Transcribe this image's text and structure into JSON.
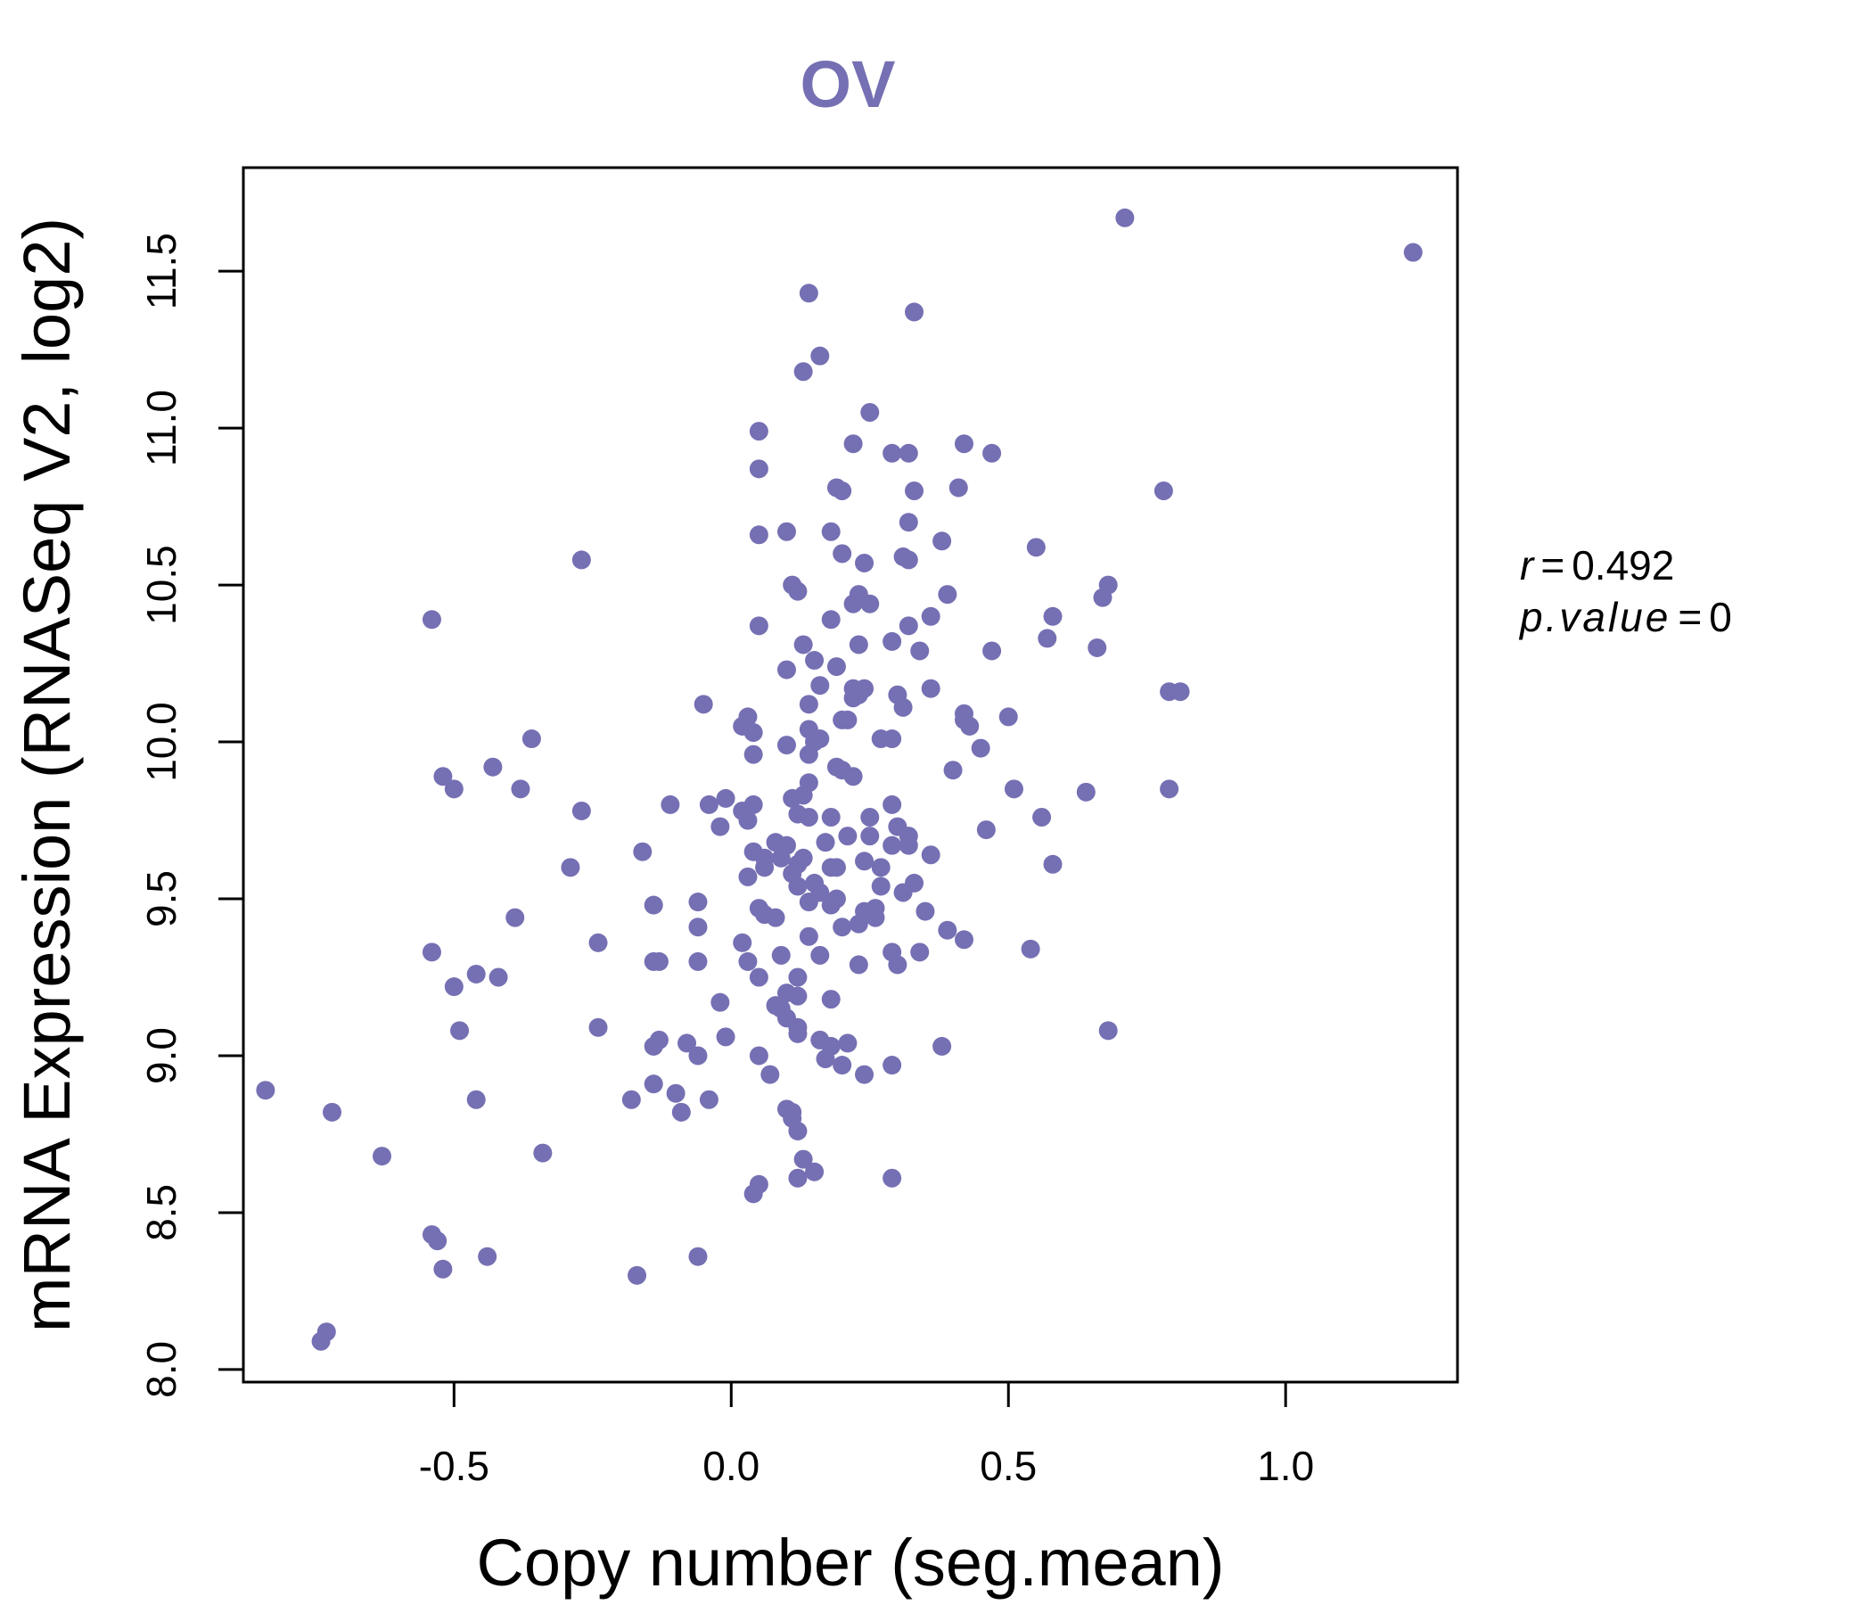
{
  "chart_data": {
    "type": "scatter",
    "title": "OV",
    "xlabel": "Copy number (seg.mean)",
    "ylabel": "mRNA Expression (RNASeq V2, log2)",
    "xlim": [
      -0.88,
      1.31
    ],
    "ylim": [
      7.96,
      11.83
    ],
    "xticks": [
      "-0.5",
      "0.0",
      "0.5",
      "1.0"
    ],
    "yticks": [
      "8.0",
      "8.5",
      "9.0",
      "9.5",
      "10.0",
      "10.5",
      "11.0",
      "11.5"
    ],
    "grid": false,
    "legend": "none",
    "point_color": "#7570b3",
    "annotation": {
      "r_label": "r",
      "r_value": "0.492",
      "p_label": "p.value",
      "p_value": "0"
    },
    "x": [
      1.23,
      0.71,
      0.14,
      0.33,
      0.16,
      0.13,
      0.25,
      0.05,
      0.22,
      0.29,
      0.32,
      0.42,
      0.47,
      0.05,
      0.19,
      0.2,
      0.33,
      0.41,
      0.78,
      0.1,
      0.18,
      0.05,
      0.32,
      0.38,
      0.55,
      0.2,
      0.24,
      0.31,
      0.32,
      -0.27,
      0.11,
      0.68,
      0.67,
      0.12,
      0.23,
      0.22,
      0.25,
      0.39,
      0.36,
      0.05,
      0.32,
      0.18,
      0.58,
      0.13,
      0.57,
      0.23,
      0.29,
      0.34,
      0.47,
      0.66,
      -0.54,
      0.15,
      0.19,
      0.1,
      0.16,
      0.22,
      0.24,
      0.81,
      0.79,
      0.23,
      0.22,
      0.36,
      0.3,
      -0.05,
      0.14,
      0.31,
      0.2,
      0.21,
      0.42,
      0.42,
      0.5,
      0.03,
      0.02,
      0.04,
      0.14,
      0.43,
      0.15,
      0.16,
      0.27,
      0.29,
      0.45,
      -0.36,
      0.1,
      0.4,
      0.14,
      0.04,
      -0.43,
      0.19,
      -0.52,
      0.22,
      0.2,
      -0.5,
      -0.38,
      0.14,
      0.64,
      0.51,
      0.79,
      0.13,
      -0.01,
      -0.11,
      0.11,
      0.04,
      0.29,
      -0.04,
      0.02,
      -0.27,
      0.18,
      0.25,
      0.56,
      0.12,
      0.14,
      0.3,
      0.03,
      0.46,
      0.25,
      0.21,
      -0.02,
      0.32,
      0.17,
      0.32,
      0.08,
      0.1,
      0.04,
      0.29,
      0.36,
      0.13,
      -0.16,
      0.06,
      0.58,
      0.09,
      0.12,
      -0.29,
      0.18,
      0.24,
      0.27,
      0.19,
      0.11,
      0.06,
      0.03,
      0.33,
      0.15,
      0.12,
      0.27,
      0.16,
      0.14,
      0.19,
      0.31,
      -0.06,
      0.18,
      -0.14,
      0.05,
      0.24,
      0.26,
      0.06,
      0.26,
      0.08,
      0.35,
      0.23,
      0.2,
      -0.39,
      -0.06,
      0.39,
      0.42,
      0.14,
      0.02,
      -0.24,
      0.54,
      -0.54,
      0.29,
      0.34,
      0.16,
      0.09,
      -0.14,
      0.03,
      -0.13,
      -0.06,
      0.23,
      0.3,
      -0.46,
      0.05,
      -0.42,
      0.12,
      -0.5,
      0.1,
      0.12,
      0.18,
      -0.02,
      0.08,
      0.09,
      0.1,
      -0.24,
      0.12,
      -0.49,
      0.68,
      0.12,
      -0.01,
      0.16,
      -0.08,
      0.21,
      -0.13,
      -0.14,
      0.18,
      0.38,
      -0.06,
      0.05,
      0.17,
      0.29,
      0.2,
      0.24,
      0.07,
      -0.14,
      -0.84,
      -0.1,
      -0.18,
      0.1,
      -0.04,
      -0.46,
      0.11,
      -0.72,
      -0.09,
      0.11,
      0.12,
      -0.34,
      -0.63,
      0.13,
      0.15,
      0.29,
      0.12,
      0.05,
      0.04,
      -0.54,
      -0.53,
      -0.44,
      -0.06,
      -0.52,
      -0.17,
      -0.73,
      -0.74
    ],
    "y": [
      11.56,
      11.67,
      11.43,
      11.37,
      11.23,
      11.18,
      11.05,
      10.99,
      10.95,
      10.92,
      10.92,
      10.95,
      10.92,
      10.87,
      10.81,
      10.8,
      10.8,
      10.81,
      10.8,
      10.67,
      10.67,
      10.66,
      10.7,
      10.64,
      10.62,
      10.6,
      10.57,
      10.59,
      10.58,
      10.58,
      10.5,
      10.5,
      10.46,
      10.48,
      10.47,
      10.44,
      10.44,
      10.47,
      10.4,
      10.37,
      10.37,
      10.39,
      10.4,
      10.31,
      10.33,
      10.31,
      10.32,
      10.29,
      10.29,
      10.3,
      10.39,
      10.26,
      10.24,
      10.23,
      10.18,
      10.17,
      10.17,
      10.16,
      10.16,
      10.15,
      10.14,
      10.17,
      10.15,
      10.12,
      10.12,
      10.11,
      10.07,
      10.07,
      10.09,
      10.07,
      10.08,
      10.08,
      10.05,
      10.03,
      10.04,
      10.05,
      10.0,
      10.01,
      10.01,
      10.01,
      9.98,
      10.01,
      9.99,
      9.91,
      9.96,
      9.96,
      9.92,
      9.92,
      9.89,
      9.89,
      9.91,
      9.85,
      9.85,
      9.87,
      9.84,
      9.85,
      9.85,
      9.83,
      9.82,
      9.8,
      9.82,
      9.8,
      9.8,
      9.8,
      9.78,
      9.78,
      9.76,
      9.76,
      9.76,
      9.77,
      9.76,
      9.73,
      9.75,
      9.72,
      9.7,
      9.7,
      9.73,
      9.7,
      9.68,
      9.67,
      9.68,
      9.67,
      9.65,
      9.67,
      9.64,
      9.63,
      9.65,
      9.63,
      9.61,
      9.63,
      9.61,
      9.6,
      9.6,
      9.62,
      9.6,
      9.6,
      9.58,
      9.6,
      9.57,
      9.55,
      9.55,
      9.54,
      9.54,
      9.52,
      9.49,
      9.5,
      9.52,
      9.49,
      9.48,
      9.48,
      9.47,
      9.46,
      9.47,
      9.45,
      9.44,
      9.44,
      9.46,
      9.42,
      9.41,
      9.44,
      9.41,
      9.4,
      9.37,
      9.38,
      9.36,
      9.36,
      9.34,
      9.33,
      9.33,
      9.33,
      9.32,
      9.32,
      9.3,
      9.3,
      9.3,
      9.3,
      9.29,
      9.29,
      9.26,
      9.25,
      9.25,
      9.25,
      9.22,
      9.2,
      9.19,
      9.18,
      9.17,
      9.16,
      9.15,
      9.12,
      9.09,
      9.09,
      9.08,
      9.08,
      9.07,
      9.06,
      9.05,
      9.04,
      9.04,
      9.05,
      9.03,
      9.03,
      9.03,
      9.0,
      9.0,
      8.99,
      8.97,
      8.97,
      8.94,
      8.94,
      8.91,
      8.89,
      8.88,
      8.86,
      8.83,
      8.86,
      8.86,
      8.82,
      8.82,
      8.82,
      8.8,
      8.76,
      8.69,
      8.68,
      8.67,
      8.63,
      8.61,
      8.61,
      8.59,
      8.56,
      8.43,
      8.41,
      8.36,
      8.36,
      8.32,
      8.3,
      8.12,
      8.09
    ]
  }
}
